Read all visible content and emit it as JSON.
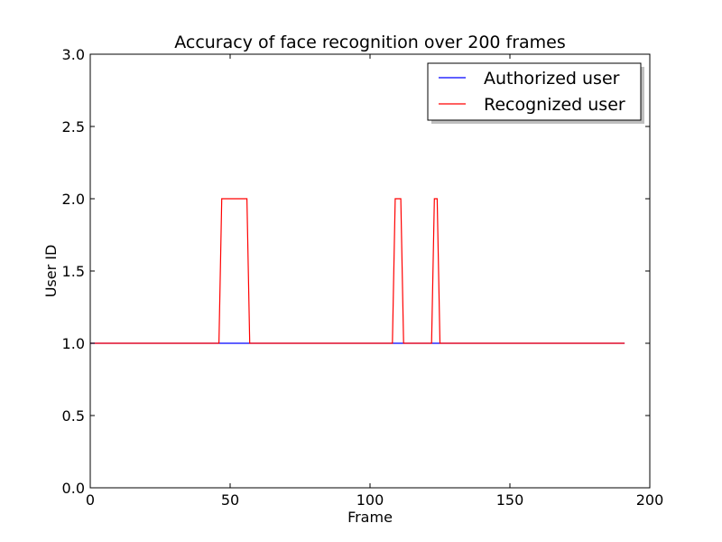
{
  "chart_data": {
    "type": "line",
    "title": "Accuracy of face recognition over 200 frames",
    "xlabel": "Frame",
    "ylabel": "User ID",
    "xlim": [
      0,
      200
    ],
    "ylim": [
      0.0,
      3.0
    ],
    "xticks": [
      0,
      50,
      100,
      150,
      200
    ],
    "xtick_labels": [
      "0",
      "50",
      "100",
      "150",
      "200"
    ],
    "yticks": [
      0.0,
      0.5,
      1.0,
      1.5,
      2.0,
      2.5,
      3.0
    ],
    "ytick_labels": [
      "0.0",
      "0.5",
      "1.0",
      "1.5",
      "2.0",
      "2.5",
      "3.0"
    ],
    "grid": false,
    "legend_position": "top-right",
    "series": [
      {
        "name": "Authorized user",
        "color": "#0000ff",
        "x": [
          0,
          191
        ],
        "y": [
          1,
          1
        ]
      },
      {
        "name": "Recognized user",
        "color": "#ff0000",
        "x": [
          0,
          46,
          47,
          56,
          57,
          108,
          109,
          111,
          112,
          122,
          123,
          124,
          125,
          191
        ],
        "y": [
          1,
          1,
          2,
          2,
          1,
          1,
          2,
          2,
          1,
          1,
          2,
          2,
          1,
          1
        ]
      }
    ]
  }
}
